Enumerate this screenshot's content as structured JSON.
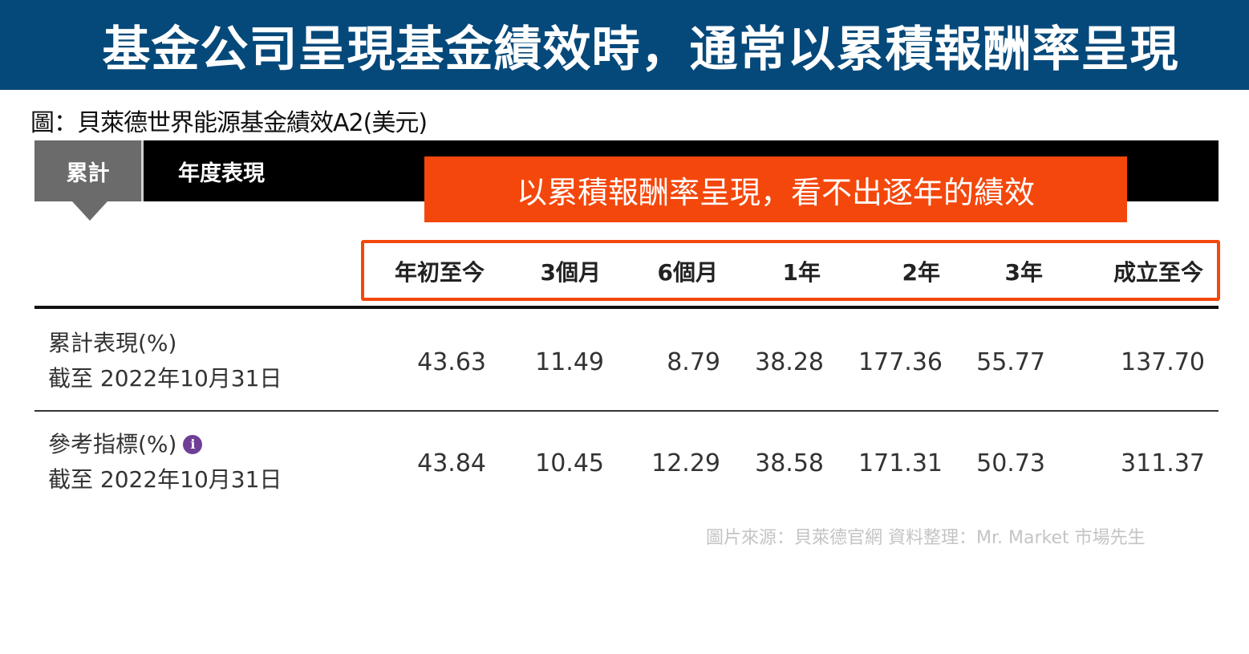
{
  "banner": {
    "title": "基金公司呈現基金績效時，通常以累積報酬率呈現"
  },
  "caption": "圖：貝萊德世界能源基金績效A2(美元)",
  "tabs": [
    {
      "label": "累計",
      "active": true
    },
    {
      "label": "年度表現",
      "active": false
    }
  ],
  "callout": "以累積報酬率呈現，看不出逐年的績效",
  "columns": [
    "年初至今",
    "3個月",
    "6個月",
    "1年",
    "2年",
    "3年",
    "成立至今"
  ],
  "rows": [
    {
      "label": "累計表現(%)",
      "sublabel": "截至 2022年10月31日",
      "values": [
        "43.63",
        "11.49",
        "8.79",
        "38.28",
        "177.36",
        "55.77",
        "137.70"
      ]
    },
    {
      "label": "參考指標(%)",
      "sublabel": "截至 2022年10月31日",
      "info_icon": "info-icon",
      "values": [
        "43.84",
        "10.45",
        "12.29",
        "38.58",
        "171.31",
        "50.73",
        "311.37"
      ]
    }
  ],
  "source": "圖片來源：貝萊德官網  資料整理：Mr. Market 市場先生",
  "colors": {
    "banner": "#05497a",
    "accent": "#f4470c",
    "tab_active": "#6b6b6b",
    "info_icon": "#6f3f95"
  }
}
